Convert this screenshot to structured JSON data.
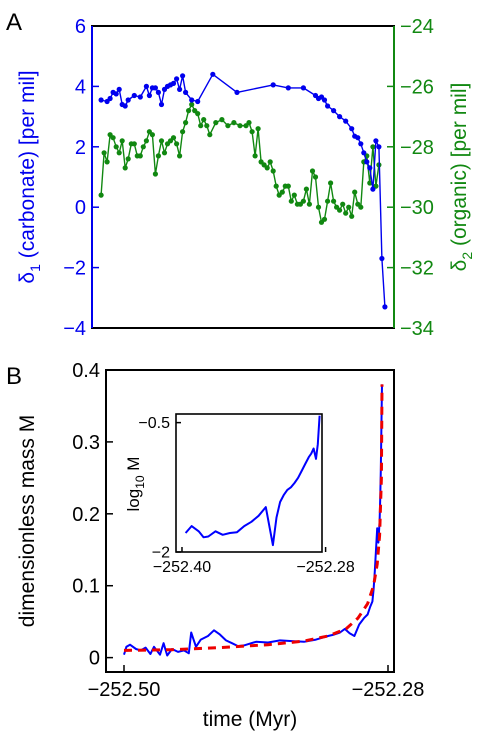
{
  "colors": {
    "carbonate": "#0000ee",
    "organic": "#118811",
    "model_blue": "#0000ff",
    "fit_red": "#ee0000",
    "axis": "#000000"
  },
  "panels": {
    "a": "A",
    "b": "B"
  },
  "chart_data": [
    {
      "type": "line",
      "panel": "A",
      "xlabel": "",
      "ylabel_left": {
        "main": "δ",
        "sub": "1",
        "rest": " (carbonate) [per mil]"
      },
      "ylabel_right": {
        "main": "δ",
        "sub": "2",
        "rest": " (organic) [per mil]"
      },
      "ylim_left": [
        -4,
        6
      ],
      "ylim_right": [
        -34,
        -24
      ],
      "xlim": [
        0,
        100
      ],
      "left_ticks": [
        "−4",
        "−2",
        "0",
        "2",
        "4",
        "6"
      ],
      "right_ticks": [
        "−34",
        "−32",
        "−30",
        "−28",
        "−26",
        "−24"
      ],
      "series": [
        {
          "axis": "left",
          "x": [
            3,
            5,
            6,
            7,
            8,
            9,
            10,
            11,
            12,
            14,
            16,
            18,
            19,
            20,
            21,
            22,
            23,
            24,
            25,
            26,
            27,
            28,
            29,
            30,
            31,
            33,
            35,
            40,
            48,
            60,
            65,
            70,
            74,
            75,
            76,
            77,
            78,
            80,
            82,
            84,
            86,
            87,
            88,
            89,
            90,
            91,
            92,
            93,
            94,
            95,
            96,
            97
          ],
          "values": [
            3.55,
            3.5,
            3.6,
            3.8,
            3.75,
            3.9,
            3.4,
            3.35,
            3.55,
            3.7,
            3.65,
            4.0,
            3.7,
            3.95,
            3.95,
            3.8,
            3.4,
            3.9,
            4.0,
            4.05,
            4.1,
            4.25,
            3.9,
            4.35,
            3.8,
            3.55,
            3.5,
            4.4,
            3.8,
            4.05,
            3.95,
            3.95,
            3.7,
            3.6,
            3.65,
            3.55,
            3.35,
            3.2,
            3.0,
            2.85,
            2.6,
            2.35,
            2.3,
            2.1,
            1.8,
            1.5,
            1.3,
            0.6,
            2.2,
            2.0,
            -1.7,
            -3.3
          ]
        },
        {
          "axis": "right",
          "x": [
            3,
            4,
            5,
            6,
            7,
            8,
            9,
            10,
            11,
            12,
            13,
            14,
            15,
            16,
            17,
            18,
            19,
            20,
            21,
            22,
            23,
            24,
            25,
            26,
            27,
            28,
            29,
            30,
            31,
            32,
            33,
            34,
            35,
            36,
            37,
            38,
            39,
            41,
            43,
            45,
            47,
            49,
            51,
            52,
            53,
            54,
            55,
            56,
            57,
            58,
            59,
            60,
            61,
            62,
            63,
            64,
            65,
            66,
            67,
            68,
            69,
            70,
            71,
            72,
            73,
            74,
            75,
            76,
            77,
            78,
            79,
            80,
            81,
            82,
            83,
            84,
            85,
            86,
            87,
            88,
            89,
            90,
            91,
            92,
            93,
            94,
            95
          ],
          "values": [
            -29.6,
            -28.2,
            -28.5,
            -27.6,
            -27.7,
            -28.0,
            -28.2,
            -27.8,
            -28.7,
            -28.4,
            -27.9,
            -27.9,
            -28.3,
            -28.3,
            -28.0,
            -27.8,
            -27.5,
            -27.6,
            -28.9,
            -28.3,
            -27.8,
            -28.2,
            -27.9,
            -27.8,
            -27.7,
            -27.9,
            -28.3,
            -27.5,
            -27.2,
            -26.8,
            -26.6,
            -26.8,
            -26.9,
            -27.3,
            -27.1,
            -27.3,
            -27.6,
            -27.2,
            -27.1,
            -27.3,
            -27.2,
            -27.3,
            -27.3,
            -27.2,
            -27.5,
            -28.3,
            -27.4,
            -28.5,
            -28.6,
            -28.7,
            -28.5,
            -28.8,
            -29.3,
            -29.6,
            -29.5,
            -29.3,
            -29.3,
            -29.8,
            -29.6,
            -29.9,
            -29.9,
            -29.8,
            -29.4,
            -29.9,
            -28.8,
            -29.0,
            -30.0,
            -30.5,
            -30.4,
            -29.8,
            -29.2,
            -29.8,
            -30.0,
            -30.1,
            -29.9,
            -30.2,
            -30.0,
            -30.3,
            -29.5,
            -29.9,
            -30.0,
            -28.5,
            -28.3,
            -29.2,
            -28.0,
            -29.3,
            -28.6
          ]
        }
      ]
    },
    {
      "type": "line",
      "panel": "B",
      "xlabel": "time (Myr)",
      "ylabel": "dimensionless mass M",
      "xlim": [
        -252.5,
        -252.28
      ],
      "ylim": [
        -0.02,
        0.4
      ],
      "x_ticks": [
        "−252.50",
        "−252.28"
      ],
      "y_ticks": [
        "0",
        "0.1",
        "0.2",
        "0.3",
        "0.4"
      ],
      "series": [
        {
          "style": "solid",
          "x": [
            -252.5,
            -252.498,
            -252.495,
            -252.49,
            -252.486,
            -252.482,
            -252.478,
            -252.475,
            -252.47,
            -252.467,
            -252.464,
            -252.46,
            -252.455,
            -252.45,
            -252.446,
            -252.444,
            -252.44,
            -252.436,
            -252.43,
            -252.425,
            -252.42,
            -252.415,
            -252.41,
            -252.405,
            -252.4,
            -252.39,
            -252.38,
            -252.37,
            -252.36,
            -252.35,
            -252.34,
            -252.33,
            -252.325,
            -252.32,
            -252.316,
            -252.312,
            -252.308,
            -252.304,
            -252.3,
            -252.297,
            -252.295,
            -252.293,
            -252.292,
            -252.291,
            -252.29,
            -252.289,
            -252.288,
            -252.287,
            -252.2865,
            -252.286,
            -252.2855,
            -252.285
          ],
          "values": [
            0.004,
            0.015,
            0.018,
            0.012,
            0.01,
            0.014,
            0.005,
            0.015,
            0.004,
            0.02,
            0.003,
            0.012,
            0.008,
            0.01,
            0.006,
            0.035,
            0.015,
            0.025,
            0.03,
            0.038,
            0.032,
            0.024,
            0.02,
            0.016,
            0.017,
            0.022,
            0.021,
            0.024,
            0.023,
            0.022,
            0.025,
            0.03,
            0.032,
            0.035,
            0.04,
            0.034,
            0.03,
            0.046,
            0.055,
            0.06,
            0.07,
            0.078,
            0.095,
            0.12,
            0.15,
            0.18,
            0.16,
            0.19,
            0.22,
            0.26,
            0.32,
            0.38
          ]
        },
        {
          "style": "dashed",
          "x": [
            -252.5,
            -252.46,
            -252.42,
            -252.38,
            -252.35,
            -252.33,
            -252.315,
            -252.305,
            -252.297,
            -252.292,
            -252.289,
            -252.287,
            -252.2855,
            -252.285
          ],
          "values": [
            0.01,
            0.011,
            0.014,
            0.018,
            0.023,
            0.03,
            0.04,
            0.055,
            0.075,
            0.1,
            0.13,
            0.17,
            0.25,
            0.38
          ]
        }
      ]
    },
    {
      "type": "line",
      "panel": "B-inset",
      "ylabel": {
        "main": "log",
        "sub": "10",
        "rest": " M"
      },
      "xlim": [
        -252.4,
        -252.28
      ],
      "ylim": [
        -2,
        -0.4
      ],
      "x_ticks": [
        "−252.40",
        "−252.28"
      ],
      "y_ticks": [
        "−2",
        "−0.5"
      ],
      "series": [
        {
          "style": "solid",
          "x": [
            -252.397,
            -252.392,
            -252.386,
            -252.382,
            -252.378,
            -252.372,
            -252.366,
            -252.36,
            -252.354,
            -252.348,
            -252.342,
            -252.336,
            -252.33,
            -252.324,
            -252.321,
            -252.318,
            -252.315,
            -252.312,
            -252.309,
            -252.306,
            -252.303,
            -252.3,
            -252.297,
            -252.294,
            -252.292,
            -252.29,
            -252.288,
            -252.2865,
            -252.285
          ],
          "values": [
            -1.78,
            -1.7,
            -1.76,
            -1.83,
            -1.82,
            -1.76,
            -1.8,
            -1.78,
            -1.77,
            -1.7,
            -1.65,
            -1.58,
            -1.48,
            -1.92,
            -1.6,
            -1.42,
            -1.34,
            -1.28,
            -1.25,
            -1.2,
            -1.14,
            -1.06,
            -0.98,
            -0.9,
            -0.86,
            -0.8,
            -0.92,
            -0.75,
            -0.42
          ]
        }
      ]
    }
  ]
}
